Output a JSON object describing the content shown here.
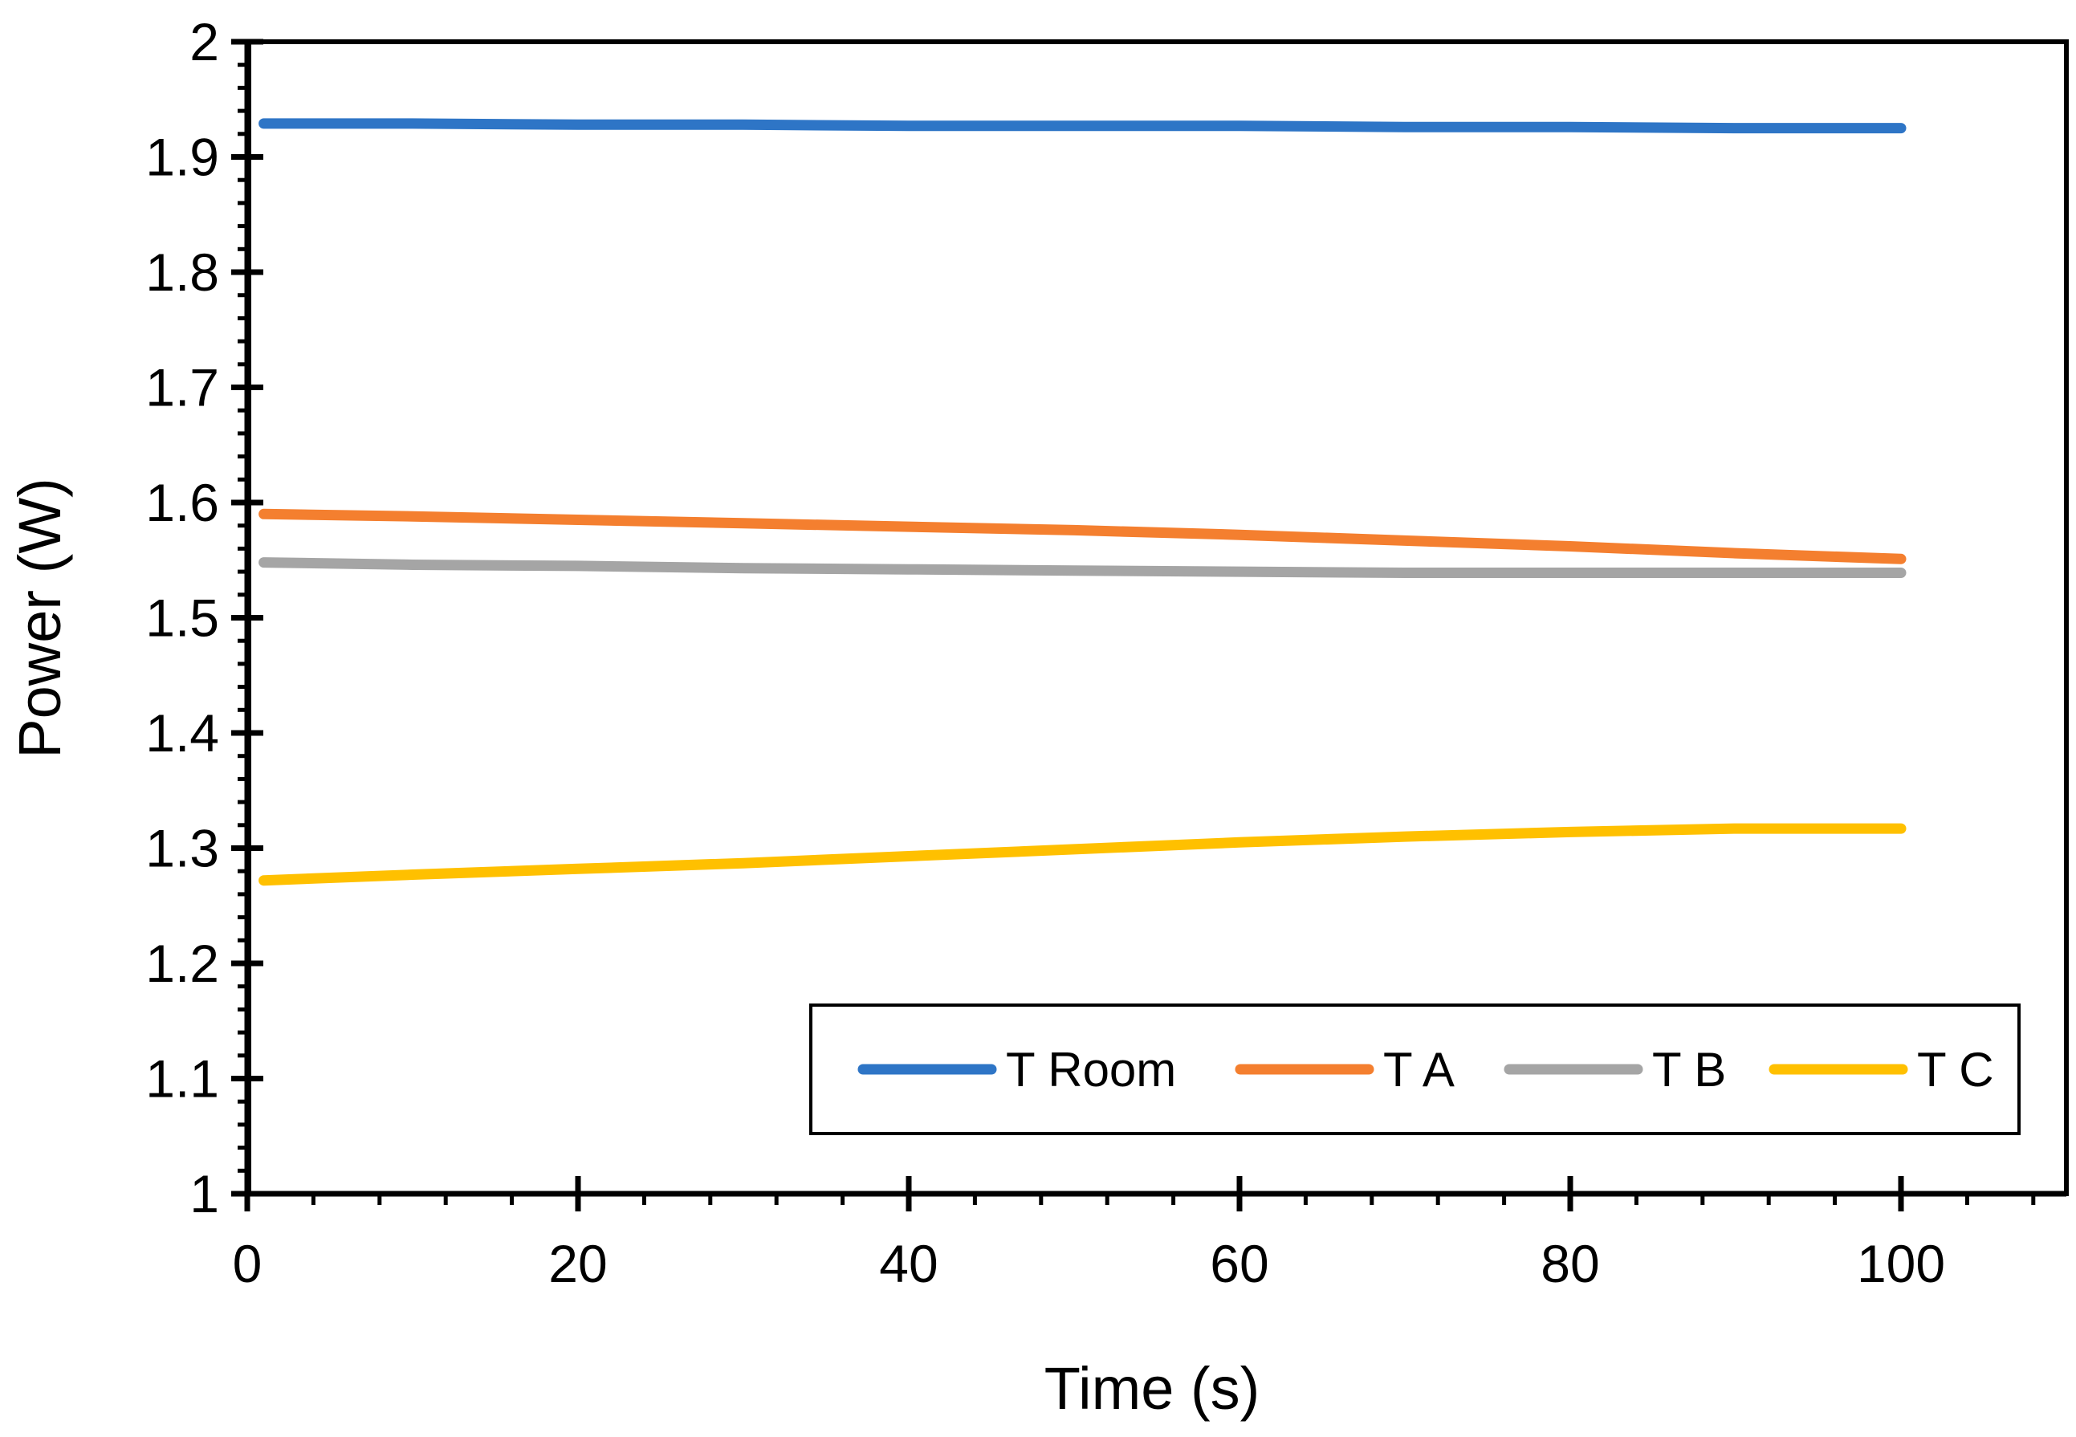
{
  "chart_data": {
    "type": "line",
    "title": "",
    "xlabel": "Time (s)",
    "ylabel": "Power (W)",
    "xlim": [
      0,
      110
    ],
    "ylim": [
      1,
      2
    ],
    "xticks": [
      0,
      20,
      40,
      60,
      80,
      100
    ],
    "xtick_labels": [
      "0",
      "20",
      "40",
      "60",
      "80",
      "100"
    ],
    "yticks": [
      1,
      1.1,
      1.2,
      1.3,
      1.4,
      1.5,
      1.6,
      1.7,
      1.8,
      1.9,
      2
    ],
    "ytick_labels": [
      "1",
      "1.1",
      "1.2",
      "1.3",
      "1.4",
      "1.5",
      "1.6",
      "1.7",
      "1.8",
      "1.9",
      "2"
    ],
    "grid": false,
    "legend_position": "bottom-right",
    "x": [
      1,
      10,
      20,
      30,
      40,
      50,
      60,
      70,
      80,
      90,
      100
    ],
    "series": [
      {
        "name": "T Room",
        "color": "#2E75C6",
        "values": [
          1.929,
          1.929,
          1.928,
          1.928,
          1.927,
          1.927,
          1.927,
          1.926,
          1.926,
          1.925,
          1.925
        ]
      },
      {
        "name": "T A",
        "color": "#F47F2F",
        "values": [
          1.59,
          1.588,
          1.585,
          1.582,
          1.579,
          1.576,
          1.572,
          1.567,
          1.562,
          1.556,
          1.551
        ]
      },
      {
        "name": "T B",
        "color": "#A5A5A5",
        "values": [
          1.548,
          1.546,
          1.545,
          1.543,
          1.542,
          1.541,
          1.54,
          1.539,
          1.539,
          1.539,
          1.539
        ]
      },
      {
        "name": "T C",
        "color": "#FFC000",
        "values": [
          1.272,
          1.277,
          1.282,
          1.287,
          1.293,
          1.299,
          1.305,
          1.31,
          1.314,
          1.317,
          1.317
        ]
      }
    ]
  }
}
